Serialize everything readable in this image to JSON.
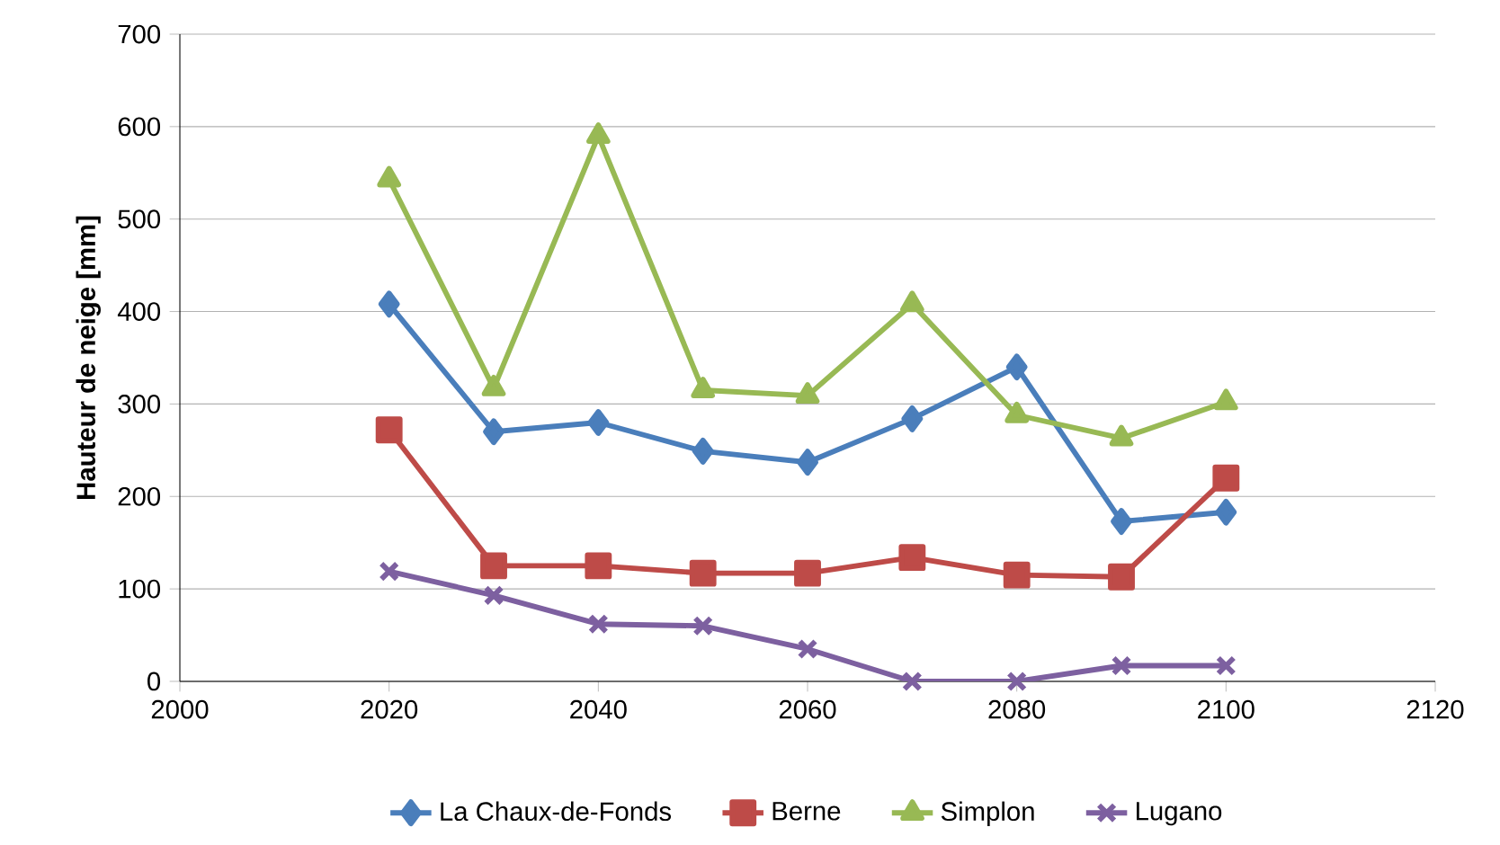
{
  "chart_data": {
    "type": "line",
    "ylabel": "Hauteur de neige [mm]",
    "x": [
      2020,
      2030,
      2040,
      2050,
      2060,
      2070,
      2080,
      2090,
      2100
    ],
    "series": [
      {
        "name": "La Chaux-de-Fonds",
        "color": "#4a7ebb",
        "marker": "diamond",
        "values": [
          408,
          270,
          280,
          249,
          237,
          284,
          340,
          173,
          183
        ]
      },
      {
        "name": "Berne",
        "color": "#be4b48",
        "marker": "square",
        "values": [
          272,
          125,
          125,
          117,
          117,
          134,
          115,
          113,
          220
        ]
      },
      {
        "name": "Simplon",
        "color": "#98b954",
        "marker": "triangle",
        "values": [
          543,
          317,
          590,
          315,
          309,
          408,
          288,
          263,
          302
        ]
      },
      {
        "name": "Lugano",
        "color": "#7d60a0",
        "marker": "cross",
        "values": [
          119,
          93,
          62,
          60,
          35,
          0,
          0,
          17,
          17
        ]
      }
    ],
    "xlim": [
      2000,
      2120
    ],
    "xticks": [
      2000,
      2020,
      2040,
      2060,
      2080,
      2100,
      2120
    ],
    "ylim": [
      0,
      700
    ],
    "yticks": [
      0,
      100,
      200,
      300,
      400,
      500,
      600,
      700
    ],
    "grid": "y",
    "legend": "bottom",
    "line_style": "solid"
  }
}
